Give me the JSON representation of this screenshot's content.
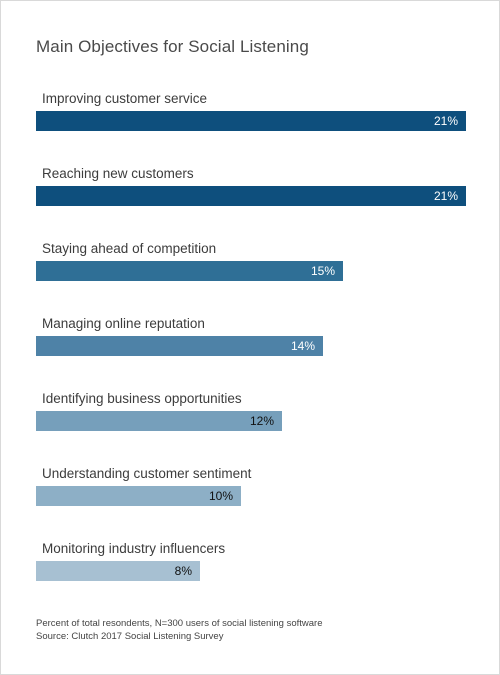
{
  "chart_data": {
    "type": "bar",
    "orientation": "horizontal",
    "title": "Main Objectives for Social Listening",
    "categories": [
      "Improving customer service",
      "Reaching new customers",
      "Staying ahead of competition",
      "Managing online reputation",
      "Identifying business opportunities",
      "Understanding customer sentiment",
      "Monitoring industry influencers"
    ],
    "values": [
      21,
      21,
      15,
      14,
      12,
      10,
      8
    ],
    "value_labels": [
      "21%",
      "21%",
      "15%",
      "14%",
      "12%",
      "10%",
      "8%"
    ],
    "value_unit": "%",
    "xlim": [
      0,
      21
    ],
    "grid": false,
    "legend": "none",
    "bar_colors": [
      "#0e4f7d",
      "#0e4f7d",
      "#2f6f96",
      "#4e82a7",
      "#769fbb",
      "#8dafc6",
      "#a7c0d2"
    ],
    "label_colors": [
      "#ffffff",
      "#ffffff",
      "#ffffff",
      "#ffffff",
      "#111111",
      "#111111",
      "#111111"
    ]
  },
  "footnotes": {
    "note": "Percent of total resondents, N=300 users of social listening software",
    "source": "Source: Clutch 2017 Social Listening Survey"
  }
}
